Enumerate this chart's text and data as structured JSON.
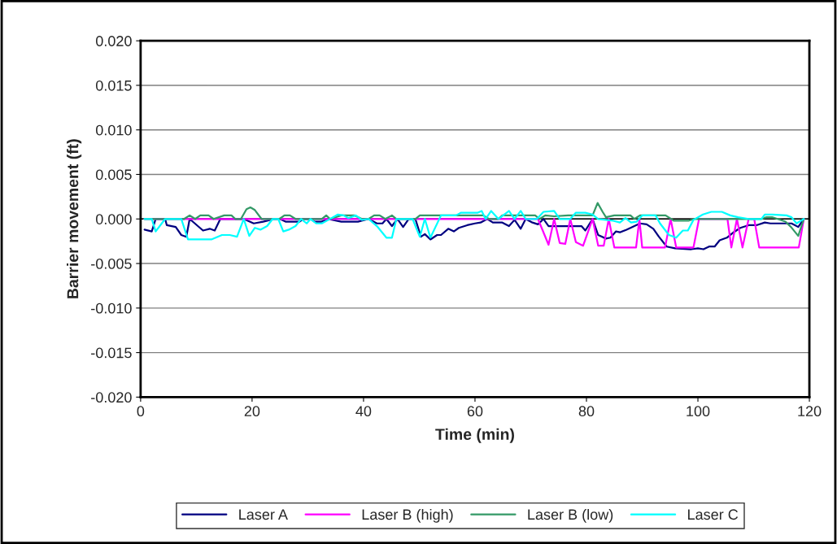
{
  "chart_data": {
    "type": "line",
    "xlabel": "Time (min)",
    "ylabel": "Barrier movement (ft)",
    "xlim": [
      0,
      120
    ],
    "xticks": [
      0,
      20,
      40,
      60,
      80,
      100,
      120
    ],
    "ylim": [
      -0.02,
      0.02
    ],
    "yticks": [
      {
        "value": -0.02,
        "label": "-0.020"
      },
      {
        "value": -0.015,
        "label": "-0.015"
      },
      {
        "value": -0.01,
        "label": "-0.010"
      },
      {
        "value": -0.005,
        "label": "-0.005"
      },
      {
        "value": 0,
        "label": "0.000"
      },
      {
        "value": 0.005,
        "label": "0.005"
      },
      {
        "value": 0.01,
        "label": "0.010"
      },
      {
        "value": 0.015,
        "label": "0.015"
      },
      {
        "value": 0.02,
        "label": "0.020"
      }
    ],
    "grid": "y",
    "legend": "bottom",
    "marker": "none",
    "line_style": "solid",
    "ref_lines": [
      {
        "axis": "y",
        "value": 0,
        "color": "#000000"
      }
    ],
    "series": [
      {
        "name": "Laser A",
        "color": "#000080",
        "x": [
          0.7,
          2,
          2.7,
          4.4,
          4.7,
          6.3,
          7.3,
          8.2,
          8.8,
          11.2,
          12.4,
          13.3,
          14.3,
          18.5,
          20.3,
          22,
          24,
          25,
          26,
          28.5,
          29.2,
          30.5,
          31.2,
          32.5,
          33.6,
          36,
          39,
          40.9,
          42.4,
          43.4,
          44.1,
          45.1,
          46.1,
          47.1,
          48.1,
          49.3,
          50.3,
          51,
          52,
          53.2,
          53.9,
          55.2,
          56.2,
          57.1,
          58.6,
          60,
          61,
          62.2,
          63.2,
          64.9,
          66.1,
          67.1,
          68.2,
          69.1,
          70.3,
          71.3,
          72.3,
          73.2,
          75.2,
          78.1,
          79.1,
          79.8,
          81.1,
          82.1,
          83.5,
          84.3,
          85.3,
          86,
          87.2,
          88.6,
          89.6,
          90.8,
          92,
          93,
          94.4,
          95.9,
          98.8,
          100,
          101,
          102,
          103,
          103.9,
          105.2,
          106.4,
          107.6,
          109.1,
          110.5,
          112,
          113,
          116.8,
          118,
          119
        ],
        "values": [
          -0.0012,
          -0.0014,
          0,
          0,
          -0.0007,
          -0.0009,
          -0.0018,
          -0.002,
          0,
          -0.0013,
          -0.0011,
          -0.0013,
          0,
          0,
          -0.0005,
          -0.0003,
          0,
          0,
          -0.0003,
          -0.0003,
          0,
          0,
          -0.0003,
          -0.0003,
          0,
          -0.0003,
          -0.0003,
          0,
          -0.0005,
          -0.0005,
          0,
          -0.0008,
          0,
          -0.0009,
          0,
          0,
          -0.002,
          -0.0017,
          -0.0023,
          -0.0018,
          -0.0018,
          -0.0011,
          -0.0014,
          -0.001,
          -0.0007,
          -0.0005,
          -0.0004,
          0,
          -0.0004,
          -0.0004,
          -0.0008,
          -0.0001,
          -0.0011,
          0,
          -0.0004,
          -0.0006,
          0,
          -0.0008,
          -0.0008,
          -0.0008,
          -0.0008,
          -0.0013,
          0,
          -0.0018,
          -0.0022,
          -0.0021,
          -0.0014,
          -0.0015,
          -0.0012,
          -0.0008,
          -0.0005,
          -0.0006,
          -0.0011,
          -0.002,
          -0.0031,
          -0.0033,
          -0.0034,
          -0.0033,
          -0.0034,
          -0.0031,
          -0.0031,
          -0.0024,
          -0.0021,
          -0.0015,
          -0.001,
          -0.0007,
          -0.0007,
          -0.0004,
          -0.0005,
          -0.0005,
          -0.0009,
          0
        ]
      },
      {
        "name": "Laser B (high)",
        "color": "#ff00ff",
        "x": [
          0.7,
          71.3,
          73.2,
          74.2,
          75.2,
          76.2,
          77.1,
          78.1,
          79.4,
          81.1,
          82.1,
          83.1,
          84,
          85,
          88.9,
          89.5,
          90,
          94.1,
          95.1,
          96.1,
          99.2,
          100.2,
          105.3,
          106,
          107,
          108,
          109.1,
          110.1,
          111,
          118.1,
          119
        ],
        "values": [
          0,
          0,
          -0.0029,
          0,
          -0.0027,
          -0.0028,
          0,
          -0.0026,
          -0.003,
          0,
          -0.003,
          -0.003,
          0,
          -0.0032,
          -0.0032,
          0,
          -0.0032,
          -0.0032,
          0,
          -0.0032,
          -0.0032,
          0,
          0,
          -0.0032,
          0,
          -0.0032,
          0,
          0,
          -0.0032,
          -0.0032,
          0
        ]
      },
      {
        "name": "Laser B (low)",
        "color": "#339966",
        "x": [
          0.7,
          7.8,
          8.8,
          9.8,
          10.7,
          12.2,
          13.1,
          15,
          16.3,
          17,
          18,
          19,
          19.7,
          20.5,
          21.7,
          24.9,
          25.8,
          26.8,
          27.8,
          32.5,
          33.3,
          34,
          36,
          38.4,
          39.7,
          40.9,
          41.9,
          42.9,
          43.9,
          45.1,
          45.9,
          49.3,
          50.1,
          61.5,
          62.5,
          64.2,
          64.9,
          70.8,
          71.6,
          72.6,
          74.2,
          76.7,
          78.4,
          81.1,
          82,
          82.9,
          83.5,
          85,
          87.9,
          88.6,
          89.6,
          94.2,
          95.7,
          98.3,
          99.3,
          111.4,
          112.3,
          113.3,
          114.3,
          115.7,
          116.7,
          118,
          119
        ],
        "values": [
          0,
          0,
          0.0004,
          0,
          0.0004,
          0.0004,
          0,
          0.0004,
          0.0004,
          0,
          0,
          0.0011,
          0.0013,
          0.001,
          0,
          0,
          0.0004,
          0.0004,
          0,
          0,
          0.0004,
          0,
          0.0004,
          0.0004,
          0,
          0,
          0.0004,
          0.0004,
          0,
          0.0004,
          0,
          0,
          0.0004,
          0.0004,
          0,
          0,
          0.0004,
          0.0004,
          0,
          0.0004,
          0.0003,
          0.0004,
          0.0004,
          0.0004,
          0.0018,
          0.0008,
          0.0002,
          0.0004,
          0.0004,
          0,
          0.0004,
          0.0004,
          -0.0002,
          -0.0002,
          0,
          0,
          0.0002,
          0.0002,
          0,
          -0.0003,
          -0.0009,
          -0.0019,
          0
        ]
      },
      {
        "name": "Laser C",
        "color": "#00ffff",
        "x": [
          0.7,
          2,
          2.7,
          4.4,
          7.3,
          8.5,
          12.7,
          14.6,
          16,
          17.3,
          18.5,
          19.5,
          20.5,
          21.5,
          22.7,
          23.7,
          24.7,
          25.6,
          26.6,
          27.8,
          28.8,
          29.8,
          30.5,
          31.5,
          32.5,
          33.7,
          35.4,
          36.4,
          37.3,
          38.6,
          39.7,
          40.9,
          42.4,
          44.1,
          45.1,
          45.9,
          48.8,
          50.1,
          51,
          52,
          53.9,
          56.6,
          57.5,
          60.5,
          61.2,
          61.9,
          62.9,
          64.2,
          66.1,
          67.1,
          68.2,
          69.1,
          71.1,
          72.3,
          74.2,
          75.2,
          77.1,
          78.1,
          79.8,
          81.1,
          82.1,
          84.8,
          86,
          87,
          88,
          89,
          90,
          92.4,
          93.2,
          94.8,
          96.1,
          97.3,
          98.2,
          99.2,
          100.9,
          102.4,
          104.3,
          105.8,
          107.2,
          109.1,
          111.4,
          112,
          113.4,
          115.9,
          116.8,
          117.7,
          119
        ],
        "values": [
          0,
          0,
          -0.0014,
          0,
          0,
          -0.0023,
          -0.0023,
          -0.0018,
          -0.0018,
          -0.002,
          0,
          -0.0019,
          -0.001,
          -0.0012,
          -0.0008,
          0,
          0,
          -0.0014,
          -0.0012,
          -0.0008,
          0,
          -0.0005,
          0,
          -0.0005,
          -0.0005,
          -0.0001,
          0.0005,
          0.0004,
          0.0001,
          0.0004,
          -0.0001,
          0,
          -0.0008,
          -0.0021,
          -0.0021,
          0,
          0,
          -0.002,
          0,
          -0.0021,
          0.0004,
          0.0004,
          0.0007,
          0.0007,
          0.0009,
          0,
          0.0009,
          0,
          0.0009,
          0,
          0.0009,
          0,
          0,
          0.0008,
          0.0009,
          0,
          0,
          0.0007,
          0.0007,
          0.0005,
          0,
          -0.0002,
          -0.0004,
          0.0001,
          -0.0004,
          -0.0003,
          0.0004,
          0.0004,
          -0.0005,
          -0.0018,
          -0.0021,
          -0.0013,
          -0.0013,
          -0.0001,
          0.0005,
          0.0008,
          0.0008,
          0.0004,
          0.0002,
          0,
          0,
          0.0005,
          0.0005,
          0.0004,
          0.0002,
          -0.0005,
          0
        ]
      }
    ]
  }
}
